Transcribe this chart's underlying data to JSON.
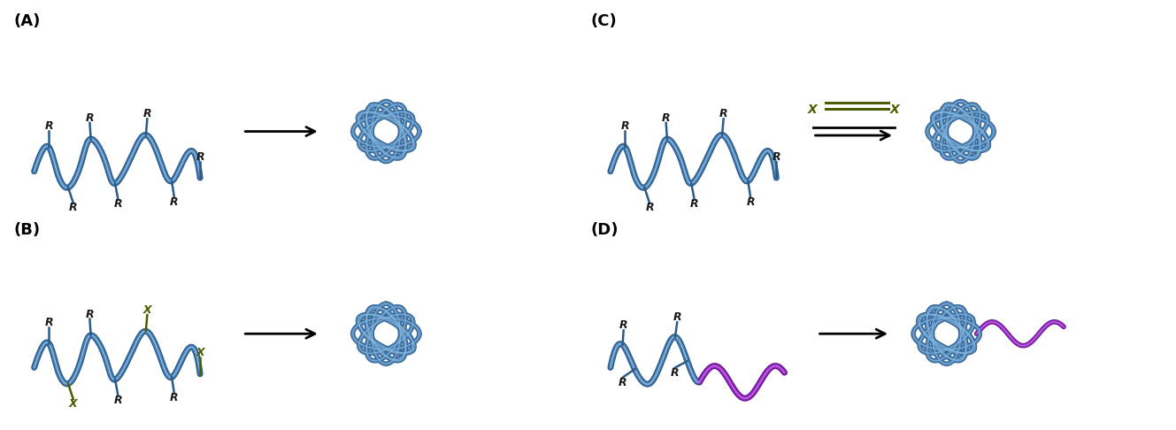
{
  "background_color": "#ffffff",
  "panel_labels": [
    "(A)",
    "(B)",
    "(C)",
    "(D)"
  ],
  "panel_label_color": "#000000",
  "panel_label_fontsize": 13,
  "chain_color_dark": "#2a5a8a",
  "chain_color_mid": "#4a7fb5",
  "chain_color_light": "#90c0e0",
  "R_color": "#1a1a1a",
  "X_color": "#4a5e00",
  "purple_dark": "#6a0a9a",
  "purple_mid": "#9b30c0",
  "purple_light": "#c070e0",
  "arrow_color": "#000000",
  "figsize": [
    13.29,
    4.86
  ],
  "dpi": 100
}
